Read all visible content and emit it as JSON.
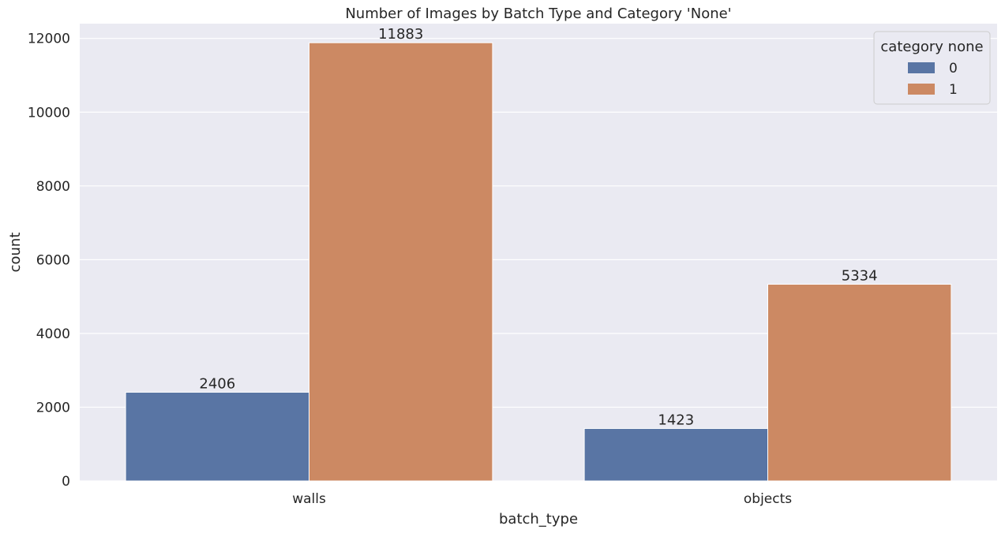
{
  "chart_data": {
    "type": "bar",
    "title": "Number of Images by Batch Type and Category 'None'",
    "xlabel": "batch_type",
    "ylabel": "count",
    "categories": [
      "walls",
      "objects"
    ],
    "series": [
      {
        "name": "0",
        "values": [
          2406,
          1423
        ]
      },
      {
        "name": "1",
        "values": [
          11883,
          5334
        ]
      }
    ],
    "data_labels": [
      [
        "2406",
        "1423"
      ],
      [
        "11883",
        "5334"
      ]
    ],
    "ylim": [
      0,
      12400
    ],
    "yticks": [
      0,
      2000,
      4000,
      6000,
      8000,
      10000,
      12000
    ],
    "ytick_labels": [
      "0",
      "2000",
      "4000",
      "6000",
      "8000",
      "10000",
      "12000"
    ],
    "grid": true,
    "legend": {
      "title": "category none",
      "placement": "top-right"
    },
    "colors": {
      "series_0": "#5975a4",
      "series_1": "#cc8963",
      "background": "#eaeaf2",
      "grid": "#ffffff"
    }
  }
}
